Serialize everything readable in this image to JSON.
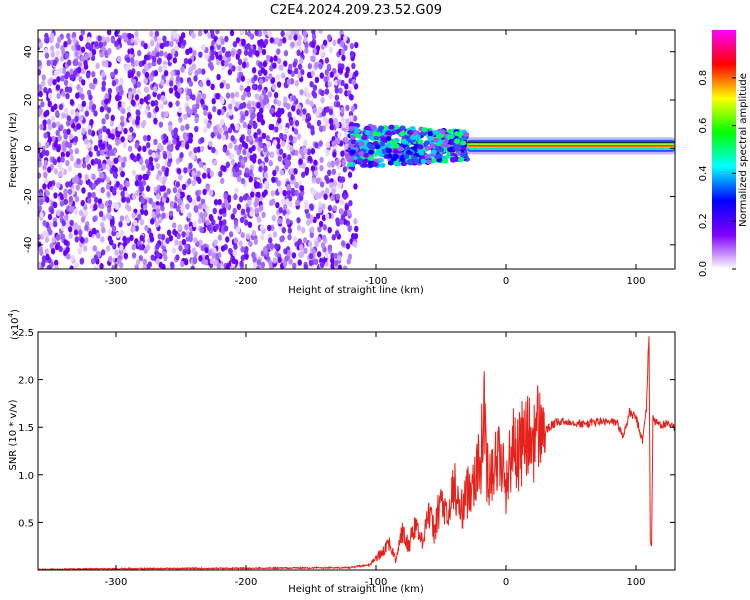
{
  "figure": {
    "title": "C2E4.2024.209.23.52.G09"
  },
  "chart_data": [
    {
      "type": "heatmap",
      "xlabel": "Height of straight line (km)",
      "ylabel": "Frequency (Hz)",
      "xlim": [
        -360,
        130
      ],
      "ylim": [
        -50,
        49
      ],
      "xticks": [
        -300,
        -200,
        -100,
        0,
        100
      ],
      "yticks": [
        -40,
        -20,
        0,
        20,
        40
      ],
      "grid": false,
      "description_regions": [
        {
          "x_range": [
            -360,
            -115
          ],
          "y_range": [
            -50,
            49
          ],
          "level": "low",
          "pattern": "scattered noise"
        },
        {
          "x_range": [
            -120,
            -30
          ],
          "y_range": [
            -8,
            10
          ],
          "level": "medium",
          "pattern": "band near 0 Hz"
        },
        {
          "x_range": [
            -30,
            130
          ],
          "y_range": [
            -2,
            4
          ],
          "level": "high",
          "pattern": "narrow line near 1 Hz"
        }
      ],
      "colorbar": {
        "label": "Normalized spectral amplitude",
        "range": [
          0,
          1
        ],
        "ticks": [
          0.0,
          0.2,
          0.4,
          0.6,
          0.8
        ],
        "colors": [
          "#ffffff",
          "#8000ff",
          "#0000ff",
          "#00ffff",
          "#00ff00",
          "#ffff00",
          "#ff0000",
          "#ff00ff"
        ]
      }
    },
    {
      "type": "line",
      "xlabel": "Height of straight line (km)",
      "ylabel": "SNR (10 * v/v)",
      "y_multiplier": "(x10",
      "y_multiplier_exp": "4",
      "y_multiplier_close": ")",
      "xlim": [
        -360,
        130
      ],
      "ylim": [
        0,
        25000
      ],
      "xticks": [
        -300,
        -200,
        -100,
        0,
        100
      ],
      "yticks": [
        5000,
        10000,
        15000,
        20000,
        25000
      ],
      "ytick_labels": [
        "0.5",
        "1.0",
        "1.5",
        "2.0",
        "2.5"
      ],
      "color": "#e8201a",
      "series": [
        {
          "x": [
            -360,
            -300,
            -200,
            -120,
            -105,
            -100,
            -95,
            -90,
            -85,
            -80,
            -75,
            -70,
            -65,
            -60,
            -55,
            -50,
            -45,
            -40,
            -35,
            -30,
            -25,
            -20,
            -16,
            -15,
            -10,
            -5,
            0,
            5,
            10,
            15,
            20,
            25,
            30,
            35,
            40,
            50,
            60,
            70,
            80,
            85,
            90,
            95,
            100,
            105,
            108,
            110,
            111,
            112,
            113,
            115,
            120,
            125,
            130
          ],
          "y": [
            0,
            80,
            120,
            200,
            500,
            1200,
            2000,
            3000,
            1000,
            4000,
            2500,
            5000,
            3000,
            6000,
            4000,
            7500,
            5000,
            9000,
            6000,
            8000,
            10000,
            11000,
            17500,
            10000,
            11000,
            12000,
            9000,
            13000,
            12500,
            14000,
            13500,
            15000,
            14500,
            15200,
            15500,
            15600,
            15300,
            15600,
            15500,
            15600,
            14000,
            16500,
            16000,
            13500,
            17000,
            25000,
            3000,
            2500,
            16000,
            15500,
            15300,
            15200,
            15000
          ]
        }
      ]
    }
  ]
}
